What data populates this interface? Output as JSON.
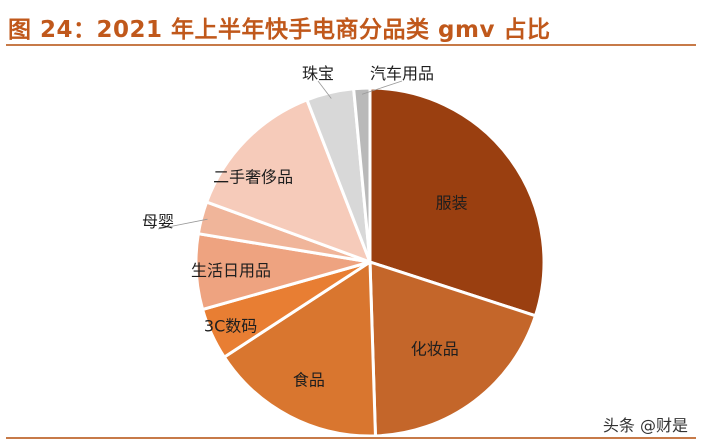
{
  "title": "图 24：2021 年上半年快手电商分品类 gmv 占比",
  "watermark": "头条 @财是",
  "chart_data": {
    "type": "pie",
    "title": "",
    "start": "12 o'clock",
    "direction": "clockwise",
    "legend": "none (labels placed on/near slices)",
    "labels": [
      "服装",
      "化妆品",
      "食品",
      "3C数码",
      "生活日用品",
      "母婴",
      "二手奢侈品",
      "珠宝",
      "汽车用品"
    ],
    "values": [
      30.0,
      19.5,
      16.3,
      4.8,
      7.0,
      3.0,
      13.5,
      4.4,
      1.5
    ],
    "colors": [
      "#9a3f10",
      "#c4662a",
      "#d9762f",
      "#e87e33",
      "#eea380",
      "#f0b59a",
      "#f6cbba",
      "#d8d8d8",
      "#b9b9b9"
    ]
  }
}
